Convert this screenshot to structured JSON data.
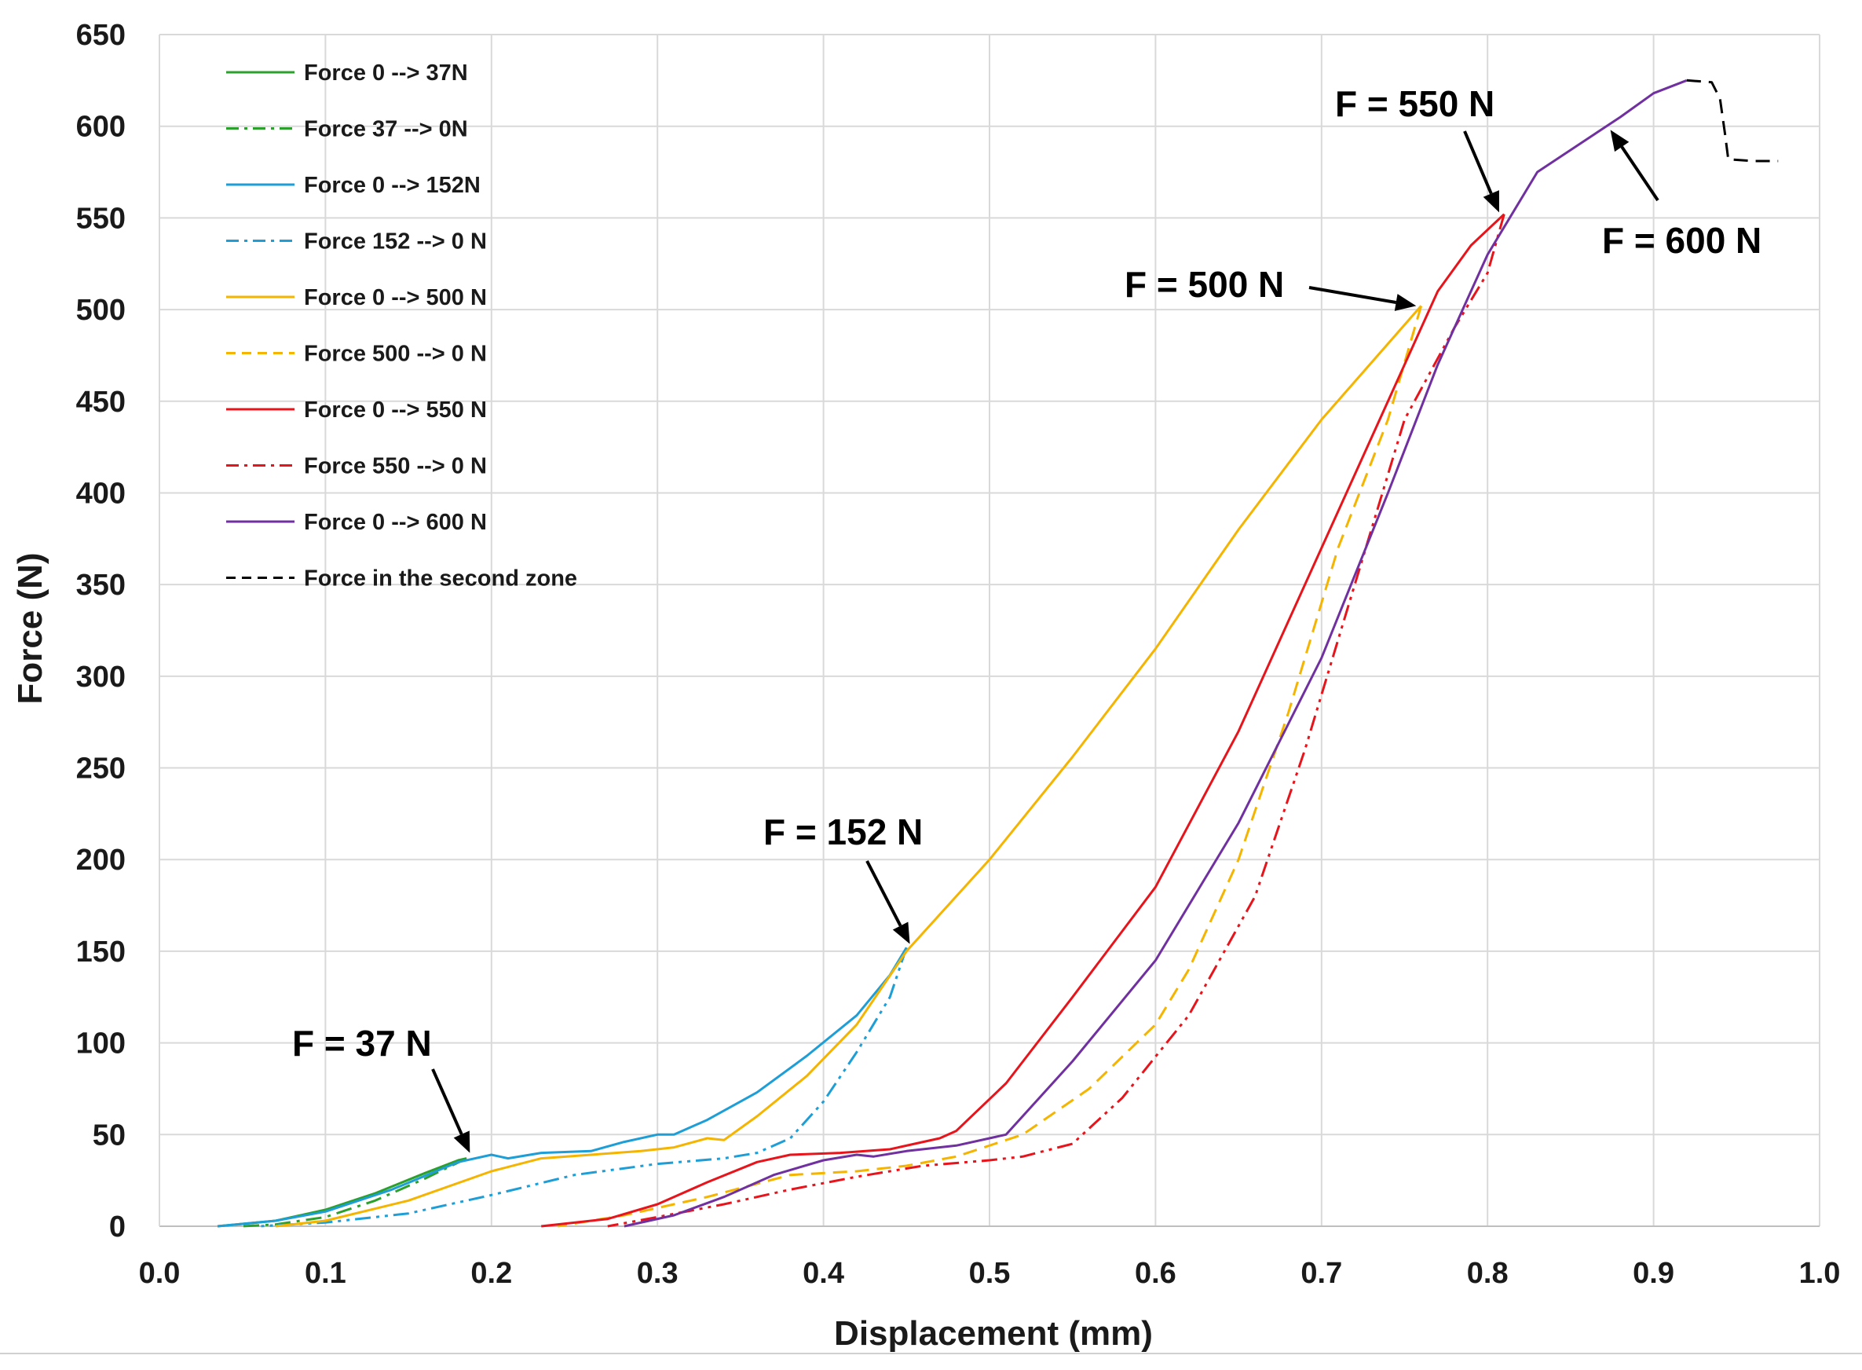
{
  "chart_data": {
    "type": "line",
    "title": "",
    "xlabel": "Displacement (mm)",
    "ylabel": "Force (N)",
    "xlim": [
      0,
      1.0
    ],
    "ylim": [
      0,
      650
    ],
    "grid": true,
    "legend_position": "top-left",
    "x_ticks": [
      0.0,
      0.1,
      0.2,
      0.3,
      0.4,
      0.5,
      0.6,
      0.7,
      0.8,
      0.9,
      1.0
    ],
    "x_tick_labels": [
      "0.0",
      "0.1",
      "0.2",
      "0.3",
      "0.4",
      "0.5",
      "0.6",
      "0.7",
      "0.8",
      "0.9",
      "1.0"
    ],
    "y_ticks": [
      0,
      50,
      100,
      150,
      200,
      250,
      300,
      350,
      400,
      450,
      500,
      550,
      600,
      650
    ],
    "y_tick_labels": [
      "0",
      "50",
      "100",
      "150",
      "200",
      "250",
      "300",
      "350",
      "400",
      "450",
      "500",
      "550",
      "600",
      "650"
    ],
    "series": [
      {
        "name": "Force 0 --> 37N",
        "color": "#2ca02c",
        "dash": "solid",
        "points": [
          [
            0.035,
            0
          ],
          [
            0.07,
            3
          ],
          [
            0.1,
            9
          ],
          [
            0.13,
            18
          ],
          [
            0.16,
            29
          ],
          [
            0.18,
            36
          ],
          [
            0.185,
            37
          ]
        ]
      },
      {
        "name": "Force 37 --> 0N",
        "color": "#2ca02c",
        "dash": "dashdot",
        "points": [
          [
            0.185,
            37
          ],
          [
            0.16,
            26
          ],
          [
            0.13,
            14
          ],
          [
            0.1,
            5
          ],
          [
            0.07,
            1
          ],
          [
            0.05,
            0
          ]
        ]
      },
      {
        "name": "Force 0 --> 152N",
        "color": "#1e9ed6",
        "dash": "solid",
        "points": [
          [
            0.035,
            0
          ],
          [
            0.07,
            3
          ],
          [
            0.1,
            8
          ],
          [
            0.14,
            20
          ],
          [
            0.18,
            35
          ],
          [
            0.2,
            39
          ],
          [
            0.21,
            37
          ],
          [
            0.23,
            40
          ],
          [
            0.26,
            41
          ],
          [
            0.28,
            46
          ],
          [
            0.3,
            50
          ],
          [
            0.31,
            50
          ],
          [
            0.33,
            58
          ],
          [
            0.36,
            73
          ],
          [
            0.39,
            93
          ],
          [
            0.42,
            115
          ],
          [
            0.44,
            137
          ],
          [
            0.45,
            152
          ]
        ]
      },
      {
        "name": "Force 152 --> 0 N",
        "color": "#1e9ed6",
        "dash": "dashdotdot",
        "points": [
          [
            0.45,
            152
          ],
          [
            0.44,
            125
          ],
          [
            0.42,
            95
          ],
          [
            0.4,
            68
          ],
          [
            0.38,
            48
          ],
          [
            0.36,
            40
          ],
          [
            0.34,
            37
          ],
          [
            0.3,
            34
          ],
          [
            0.25,
            28
          ],
          [
            0.2,
            17
          ],
          [
            0.15,
            7
          ],
          [
            0.1,
            2
          ],
          [
            0.06,
            0
          ]
        ]
      },
      {
        "name": "Force 0 --> 500 N",
        "color": "#f5b400",
        "dash": "solid",
        "points": [
          [
            0.07,
            0
          ],
          [
            0.1,
            3
          ],
          [
            0.15,
            14
          ],
          [
            0.2,
            30
          ],
          [
            0.23,
            37
          ],
          [
            0.26,
            39
          ],
          [
            0.29,
            41
          ],
          [
            0.31,
            43
          ],
          [
            0.33,
            48
          ],
          [
            0.34,
            47
          ],
          [
            0.36,
            60
          ],
          [
            0.39,
            82
          ],
          [
            0.42,
            110
          ],
          [
            0.45,
            150
          ],
          [
            0.5,
            200
          ],
          [
            0.55,
            256
          ],
          [
            0.6,
            315
          ],
          [
            0.65,
            380
          ],
          [
            0.7,
            440
          ],
          [
            0.76,
            502
          ]
        ]
      },
      {
        "name": "Force 500 --> 0 N",
        "color": "#f5b400",
        "dash": "dash",
        "points": [
          [
            0.76,
            502
          ],
          [
            0.74,
            440
          ],
          [
            0.71,
            370
          ],
          [
            0.68,
            280
          ],
          [
            0.65,
            200
          ],
          [
            0.62,
            140
          ],
          [
            0.6,
            110
          ],
          [
            0.56,
            75
          ],
          [
            0.52,
            50
          ],
          [
            0.48,
            38
          ],
          [
            0.45,
            33
          ],
          [
            0.42,
            30
          ],
          [
            0.38,
            28
          ],
          [
            0.33,
            16
          ],
          [
            0.28,
            6
          ],
          [
            0.24,
            0
          ]
        ]
      },
      {
        "name": "Force 0 --> 550 N",
        "color": "#e8141b",
        "dash": "solid",
        "points": [
          [
            0.23,
            0
          ],
          [
            0.27,
            4
          ],
          [
            0.3,
            12
          ],
          [
            0.33,
            24
          ],
          [
            0.36,
            35
          ],
          [
            0.38,
            39
          ],
          [
            0.41,
            40
          ],
          [
            0.44,
            42
          ],
          [
            0.47,
            48
          ],
          [
            0.48,
            52
          ],
          [
            0.51,
            78
          ],
          [
            0.55,
            125
          ],
          [
            0.6,
            185
          ],
          [
            0.65,
            270
          ],
          [
            0.7,
            370
          ],
          [
            0.74,
            450
          ],
          [
            0.77,
            510
          ],
          [
            0.79,
            535
          ],
          [
            0.81,
            552
          ]
        ]
      },
      {
        "name": "Force 550 --> 0 N",
        "color": "#e8141b",
        "dash": "dashdotdot",
        "points": [
          [
            0.81,
            552
          ],
          [
            0.8,
            520
          ],
          [
            0.78,
            490
          ],
          [
            0.75,
            440
          ],
          [
            0.72,
            350
          ],
          [
            0.69,
            260
          ],
          [
            0.66,
            180
          ],
          [
            0.62,
            115
          ],
          [
            0.58,
            70
          ],
          [
            0.55,
            45
          ],
          [
            0.52,
            38
          ],
          [
            0.5,
            36
          ],
          [
            0.46,
            33
          ],
          [
            0.42,
            27
          ],
          [
            0.38,
            20
          ],
          [
            0.34,
            12
          ],
          [
            0.3,
            5
          ],
          [
            0.27,
            0
          ]
        ]
      },
      {
        "name": "Force 0 --> 600 N",
        "color": "#7030a0",
        "dash": "solid",
        "points": [
          [
            0.28,
            0
          ],
          [
            0.31,
            6
          ],
          [
            0.34,
            16
          ],
          [
            0.37,
            28
          ],
          [
            0.4,
            36
          ],
          [
            0.42,
            39
          ],
          [
            0.43,
            38
          ],
          [
            0.45,
            41
          ],
          [
            0.48,
            44
          ],
          [
            0.5,
            48
          ],
          [
            0.51,
            50
          ],
          [
            0.55,
            90
          ],
          [
            0.6,
            145
          ],
          [
            0.65,
            220
          ],
          [
            0.7,
            310
          ],
          [
            0.74,
            400
          ],
          [
            0.77,
            470
          ],
          [
            0.8,
            530
          ],
          [
            0.83,
            575
          ],
          [
            0.86,
            593
          ],
          [
            0.88,
            605
          ],
          [
            0.9,
            618
          ],
          [
            0.92,
            625
          ]
        ]
      },
      {
        "name": "Force in the second zone",
        "color": "#000000",
        "dash": "dash",
        "points": [
          [
            0.92,
            625
          ],
          [
            0.935,
            624
          ],
          [
            0.94,
            615
          ],
          [
            0.943,
            596
          ],
          [
            0.945,
            582
          ],
          [
            0.96,
            581
          ],
          [
            0.975,
            581
          ]
        ]
      }
    ],
    "annotations": [
      {
        "text": "F = 37 N",
        "arrow_to": [
          0.187,
          40
        ]
      },
      {
        "text": "F = 152 N",
        "arrow_to": [
          0.452,
          154
        ]
      },
      {
        "text": "F = 500 N",
        "arrow_to": [
          0.757,
          502
        ]
      },
      {
        "text": "F = 550 N",
        "arrow_to": [
          0.807,
          553
        ]
      },
      {
        "text": "F = 600 N",
        "arrow_to": [
          0.874,
          598
        ]
      }
    ]
  }
}
